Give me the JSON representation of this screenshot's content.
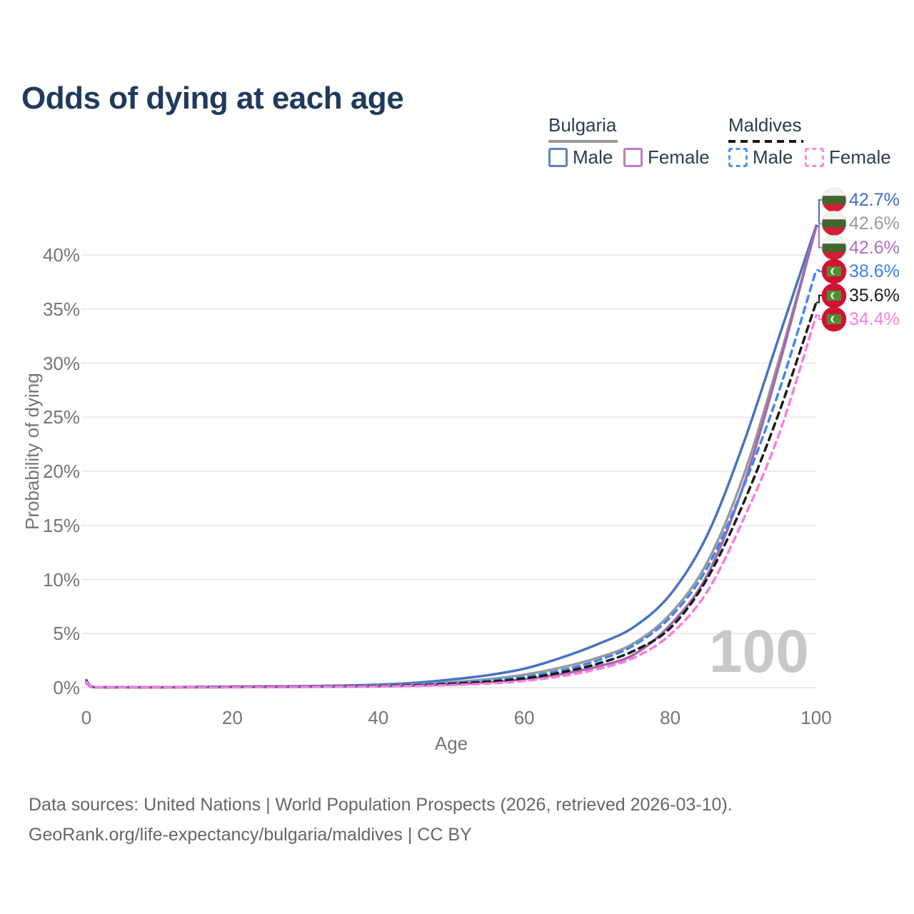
{
  "page": {
    "colors": {
      "title": "#1f3a5c",
      "legend_text": "#2b3c55",
      "axis_text": "#757575",
      "grid": "#ebebeb",
      "watermark": "#c8c8c8",
      "footer": "#666666"
    },
    "footer": {
      "line1": "Data sources: United Nations | World Population Prospects (2026, retrieved 2026-03-10).",
      "line2": "GeoRank.org/life-expectancy/bulgaria/maldives | CC BY"
    }
  },
  "chart_data": {
    "type": "line",
    "title": "Odds of dying at each age",
    "xlabel": "Age",
    "ylabel": "Probability of dying",
    "x_ticks": [
      0,
      20,
      40,
      60,
      80,
      100
    ],
    "y_ticks": [
      {
        "value": 0,
        "label": "0%"
      },
      {
        "value": 5,
        "label": "5%"
      },
      {
        "value": 10,
        "label": "10%"
      },
      {
        "value": 15,
        "label": "15%"
      },
      {
        "value": 20,
        "label": "20%"
      },
      {
        "value": 25,
        "label": "25%"
      },
      {
        "value": 30,
        "label": "30%"
      },
      {
        "value": 35,
        "label": "35%"
      },
      {
        "value": 40,
        "label": "40%"
      }
    ],
    "xlim": [
      0,
      100
    ],
    "ylim_pct": [
      0,
      43.5
    ],
    "grid": "horizontal",
    "legend_position": "top-right",
    "watermark": "100",
    "ages": [
      0,
      1,
      5,
      10,
      15,
      20,
      25,
      30,
      35,
      40,
      45,
      50,
      55,
      60,
      65,
      70,
      75,
      80,
      85,
      90,
      95,
      100
    ],
    "series": [
      {
        "id": "bulgaria-male",
        "country": "Bulgaria",
        "sex": "Male",
        "style": "solid",
        "color": "#4673c2",
        "label_color": "#3d6cc4",
        "flag": "bulgaria",
        "end_label": "42.7%",
        "end_value_pct": 42.7,
        "values_pct": [
          0.6,
          0.06,
          0.03,
          0.03,
          0.06,
          0.09,
          0.11,
          0.14,
          0.19,
          0.28,
          0.45,
          0.75,
          1.15,
          1.75,
          2.75,
          4.0,
          5.6,
          8.6,
          14.0,
          22.5,
          32.6,
          42.7
        ]
      },
      {
        "id": "bulgaria-all",
        "country": "Bulgaria",
        "sex": "All",
        "style": "solid",
        "color": "#999999",
        "label_color": "#999999",
        "flag": "bulgaria",
        "end_label": "42.6%",
        "end_value_pct": 42.6,
        "values_pct": [
          0.5,
          0.05,
          0.02,
          0.02,
          0.04,
          0.06,
          0.08,
          0.1,
          0.13,
          0.19,
          0.3,
          0.5,
          0.78,
          1.2,
          1.85,
          2.75,
          4.1,
          6.8,
          11.5,
          19.5,
          30.5,
          42.6
        ]
      },
      {
        "id": "bulgaria-female",
        "country": "Bulgaria",
        "sex": "Female",
        "style": "solid",
        "color": "#a368ae",
        "label_color": "#b16cc4",
        "flag": "bulgaria",
        "end_label": "42.6%",
        "end_value_pct": 42.6,
        "values_pct": [
          0.42,
          0.04,
          0.02,
          0.02,
          0.03,
          0.04,
          0.05,
          0.07,
          0.09,
          0.12,
          0.19,
          0.3,
          0.5,
          0.78,
          1.25,
          1.95,
          3.05,
          5.8,
          10.3,
          18.6,
          30.0,
          42.6
        ]
      },
      {
        "id": "maldives-male",
        "country": "Maldives",
        "sex": "Male",
        "style": "dashed",
        "color": "#4187f0",
        "label_color": "#3b7ef0",
        "flag": "maldives",
        "end_label": "38.6%",
        "end_value_pct": 38.6,
        "values_pct": [
          0.7,
          0.06,
          0.03,
          0.03,
          0.06,
          0.08,
          0.09,
          0.11,
          0.14,
          0.18,
          0.27,
          0.42,
          0.65,
          1.0,
          1.6,
          2.5,
          3.9,
          6.5,
          11.0,
          18.5,
          27.6,
          38.6
        ]
      },
      {
        "id": "maldives-all",
        "country": "Maldives",
        "sex": "All",
        "style": "dashed",
        "color": "#1a1a1a",
        "label_color": "#1a1a1a",
        "flag": "maldives",
        "end_label": "35.6%",
        "end_value_pct": 35.6,
        "values_pct": [
          0.62,
          0.05,
          0.03,
          0.03,
          0.05,
          0.07,
          0.08,
          0.09,
          0.12,
          0.15,
          0.22,
          0.35,
          0.55,
          0.85,
          1.4,
          2.2,
          3.4,
          5.5,
          10.0,
          17.0,
          25.6,
          35.6
        ]
      },
      {
        "id": "maldives-female",
        "country": "Maldives",
        "sex": "Female",
        "style": "dashed",
        "color": "#fb7ce2",
        "label_color": "#fc7ce2",
        "flag": "maldives",
        "end_label": "34.4%",
        "end_value_pct": 34.4,
        "values_pct": [
          0.55,
          0.05,
          0.02,
          0.02,
          0.03,
          0.04,
          0.05,
          0.07,
          0.09,
          0.11,
          0.16,
          0.24,
          0.38,
          0.62,
          1.05,
          1.7,
          2.75,
          4.9,
          8.8,
          15.5,
          23.6,
          34.4
        ]
      }
    ],
    "legend": {
      "groups": [
        {
          "label": "Bulgaria",
          "style": "solid",
          "rule_color": "#999999"
        },
        {
          "label": "Maldives",
          "style": "dashed",
          "rule_color": "#1a1a1a"
        }
      ],
      "items": [
        {
          "group": "Bulgaria",
          "label": "Male",
          "style": "solid",
          "color": "#5b82c8"
        },
        {
          "group": "Bulgaria",
          "label": "Female",
          "style": "solid",
          "color": "#bf7cbe"
        },
        {
          "group": "Maldives",
          "label": "Male",
          "style": "dashed",
          "color": "#4a90f2"
        },
        {
          "group": "Maldives",
          "label": "Female",
          "style": "dashed",
          "color": "#ff86ea"
        }
      ]
    },
    "flags": {
      "bulgaria": {
        "band_white": "#f1f1f1",
        "band_green": "#44652f",
        "band_red": "#d51e35"
      },
      "maldives": {
        "field_red": "#d21233",
        "rect_green": "#4f9032",
        "crescent": "#ffffff"
      }
    }
  }
}
